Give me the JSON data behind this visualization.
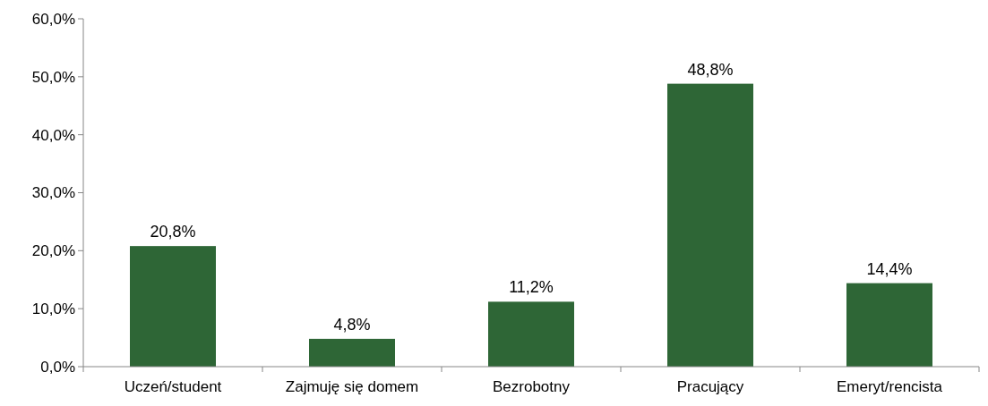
{
  "chart_data": {
    "type": "bar",
    "categories": [
      "Uczeń/student",
      "Zajmuję się domem",
      "Bezrobotny",
      "Pracujący",
      "Emeryt/rencista"
    ],
    "values": [
      20.8,
      4.8,
      11.2,
      48.8,
      14.4
    ],
    "color": "#2e6636",
    "value_labels": [
      "20,8%",
      "4,8%",
      "11,2%",
      "48,8%",
      "14,4%"
    ],
    "ylim": [
      0,
      60
    ],
    "yticks": [
      {
        "value": 0,
        "label": "0,0%"
      },
      {
        "value": 10,
        "label": "10,0%"
      },
      {
        "value": 20,
        "label": "20,0%"
      },
      {
        "value": 30,
        "label": "30,0%"
      },
      {
        "value": 40,
        "label": "40,0%"
      },
      {
        "value": 50,
        "label": "50,0%"
      },
      {
        "value": 60,
        "label": "60,0%"
      }
    ],
    "grid": false
  }
}
